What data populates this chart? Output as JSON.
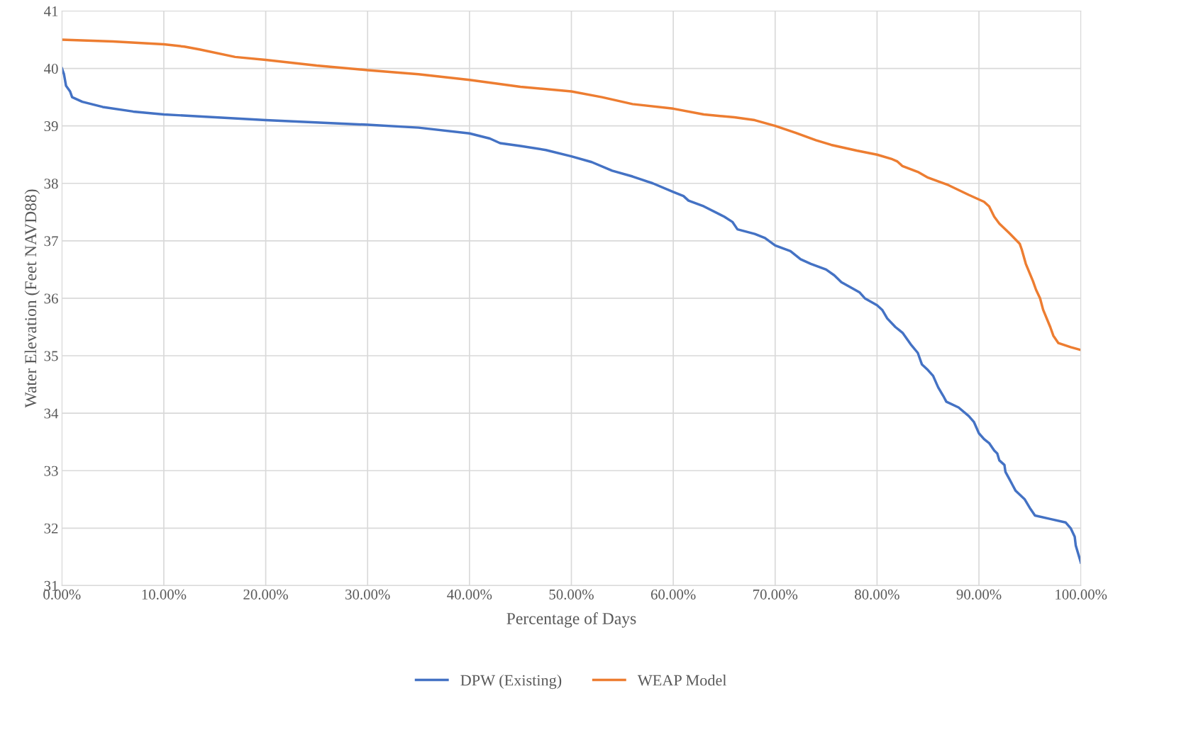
{
  "chart_data": {
    "type": "line",
    "xlabel": "Percentage of Days",
    "ylabel": "Water Elevation (Feet NAVD88)",
    "xlim": [
      0,
      100
    ],
    "ylim": [
      31,
      41
    ],
    "xticks": [
      {
        "value": 0,
        "label": "0.00%"
      },
      {
        "value": 10,
        "label": "10.00%"
      },
      {
        "value": 20,
        "label": "20.00%"
      },
      {
        "value": 30,
        "label": "30.00%"
      },
      {
        "value": 40,
        "label": "40.00%"
      },
      {
        "value": 50,
        "label": "50.00%"
      },
      {
        "value": 60,
        "label": "60.00%"
      },
      {
        "value": 70,
        "label": "70.00%"
      },
      {
        "value": 80,
        "label": "80.00%"
      },
      {
        "value": 90,
        "label": "90.00%"
      },
      {
        "value": 100,
        "label": "100.00%"
      }
    ],
    "yticks": [
      31,
      32,
      33,
      34,
      35,
      36,
      37,
      38,
      39,
      40,
      41
    ],
    "grid": true,
    "legend": "bottom",
    "marker": "none",
    "line_style": "solid",
    "series": [
      {
        "name": "DPW (Existing)",
        "color": "#4472c4",
        "x": [
          0,
          0.2,
          0.4,
          0.8,
          1.0,
          2,
          4,
          7,
          10,
          20,
          30,
          35,
          40,
          42,
          43,
          45,
          47.5,
          50,
          52,
          54,
          56,
          58,
          60,
          61,
          61.5,
          63,
          65,
          65.8,
          66.3,
          68,
          69,
          70,
          71.5,
          72.5,
          73.5,
          75,
          75.8,
          76.5,
          77.5,
          78.3,
          78.8,
          80,
          80.5,
          81,
          81.8,
          82.5,
          83.3,
          84,
          84.4,
          85,
          85.5,
          86,
          86.5,
          86.8,
          88,
          89,
          89.5,
          90,
          90.5,
          91,
          91.5,
          91.8,
          92,
          92.5,
          92.6,
          93,
          93.3,
          93.6,
          94.5,
          95,
          95.5,
          97,
          98.5,
          99,
          99.4,
          99.5,
          100
        ],
        "values": [
          40.0,
          39.9,
          39.7,
          39.6,
          39.5,
          39.42,
          39.33,
          39.25,
          39.2,
          39.1,
          39.02,
          38.97,
          38.87,
          38.78,
          38.7,
          38.65,
          38.58,
          38.47,
          38.37,
          38.22,
          38.12,
          38.0,
          37.85,
          37.78,
          37.7,
          37.6,
          37.42,
          37.33,
          37.2,
          37.12,
          37.05,
          36.92,
          36.82,
          36.68,
          36.6,
          36.5,
          36.4,
          36.28,
          36.18,
          36.1,
          36.0,
          35.88,
          35.8,
          35.65,
          35.5,
          35.4,
          35.2,
          35.05,
          34.85,
          34.75,
          34.65,
          34.45,
          34.3,
          34.2,
          34.1,
          33.95,
          33.85,
          33.65,
          33.55,
          33.48,
          33.35,
          33.3,
          33.18,
          33.1,
          32.98,
          32.85,
          32.75,
          32.65,
          32.5,
          32.35,
          32.22,
          32.16,
          32.1,
          32.0,
          31.85,
          31.7,
          31.4
        ]
      },
      {
        "name": "WEAP Model",
        "color": "#ed7d31",
        "x": [
          0,
          5,
          10,
          12,
          13.5,
          17,
          20,
          25,
          30,
          35,
          40,
          45,
          50,
          53,
          56,
          60,
          63,
          66,
          68,
          70,
          72,
          74,
          75.5,
          78,
          80,
          81.5,
          82,
          82.5,
          84,
          85,
          87,
          89,
          90.5,
          91,
          91.5,
          92,
          93,
          94,
          94.2,
          94.6,
          95.3,
          95.6,
          96,
          96.3,
          97,
          97.3,
          97.8,
          99,
          100
        ],
        "values": [
          40.5,
          40.47,
          40.42,
          40.38,
          40.33,
          40.2,
          40.15,
          40.05,
          39.97,
          39.9,
          39.8,
          39.68,
          39.6,
          39.5,
          39.38,
          39.3,
          39.2,
          39.15,
          39.1,
          39.0,
          38.88,
          38.75,
          38.67,
          38.57,
          38.5,
          38.42,
          38.38,
          38.3,
          38.2,
          38.1,
          37.97,
          37.8,
          37.68,
          37.6,
          37.42,
          37.3,
          37.13,
          36.95,
          36.85,
          36.6,
          36.3,
          36.15,
          36.0,
          35.8,
          35.5,
          35.35,
          35.22,
          35.15,
          35.1
        ]
      }
    ]
  }
}
